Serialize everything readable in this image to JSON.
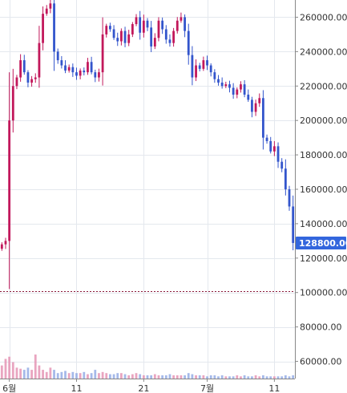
{
  "chart_data": {
    "type": "candlestick",
    "title": "",
    "xlabel": "",
    "ylabel": "",
    "ylim": [
      50000,
      270000
    ],
    "grid": true,
    "y_ticks": [
      {
        "value": 60000,
        "label": "60000.00"
      },
      {
        "value": 80000,
        "label": "80000.00"
      },
      {
        "value": 100000,
        "label": "100000.00"
      },
      {
        "value": 120000,
        "label": "120000.00"
      },
      {
        "value": 140000,
        "label": "140000.00"
      },
      {
        "value": 160000,
        "label": "160000.00"
      },
      {
        "value": 180000,
        "label": "180000.00"
      },
      {
        "value": 200000,
        "label": "200000.00"
      },
      {
        "value": 220000,
        "label": "220000.00"
      },
      {
        "value": 240000,
        "label": "240000.00"
      },
      {
        "value": 260000,
        "label": "260000.00"
      }
    ],
    "x_ticks": [
      {
        "index": 2,
        "label": "6월"
      },
      {
        "index": 20,
        "label": "11"
      },
      {
        "index": 38,
        "label": "21"
      },
      {
        "index": 55,
        "label": "7월"
      },
      {
        "index": 73,
        "label": "11"
      }
    ],
    "current_price": {
      "value": 128800,
      "label": "128800.00",
      "color": "#3366dd"
    },
    "reference_line": {
      "value": 101000,
      "color": "#8b1a3a"
    },
    "up_color": "#c2185b",
    "down_color": "#3355cc",
    "closes": [
      128000,
      130000,
      200000,
      220000,
      225000,
      235000,
      228000,
      222000,
      224000,
      225000,
      245000,
      262000,
      265000,
      268000,
      240000,
      235000,
      232000,
      229000,
      231000,
      228000,
      226000,
      229000,
      228000,
      234000,
      228000,
      225000,
      228000,
      250000,
      255000,
      253000,
      248000,
      246000,
      252000,
      245000,
      250000,
      256000,
      260000,
      251000,
      258000,
      254000,
      243000,
      248000,
      258000,
      253000,
      247000,
      245000,
      252000,
      258000,
      260000,
      252000,
      238000,
      225000,
      232000,
      230000,
      235000,
      232000,
      228000,
      224000,
      222000,
      220000,
      221000,
      219000,
      215000,
      218000,
      221000,
      215000,
      212000,
      205000,
      210000,
      213000,
      190000,
      188000,
      182000,
      185000,
      176000,
      172000,
      160000,
      150000,
      128800
    ],
    "volumes": [
      12,
      18,
      20,
      15,
      10,
      9,
      8,
      10,
      8,
      22,
      12,
      8,
      6,
      10,
      8,
      5,
      6,
      7,
      5,
      6,
      5,
      5,
      6,
      4,
      5,
      8,
      5,
      6,
      5,
      4,
      4,
      5,
      5,
      4,
      3,
      4,
      5,
      4,
      3,
      3,
      3,
      4,
      3,
      3,
      3,
      4,
      3,
      3,
      3,
      3,
      5,
      4,
      3,
      3,
      3,
      2,
      3,
      3,
      2,
      3,
      2,
      2,
      2,
      3,
      2,
      3,
      2,
      2,
      3,
      2,
      3,
      2,
      2,
      2,
      2,
      2,
      3,
      2,
      3
    ]
  }
}
